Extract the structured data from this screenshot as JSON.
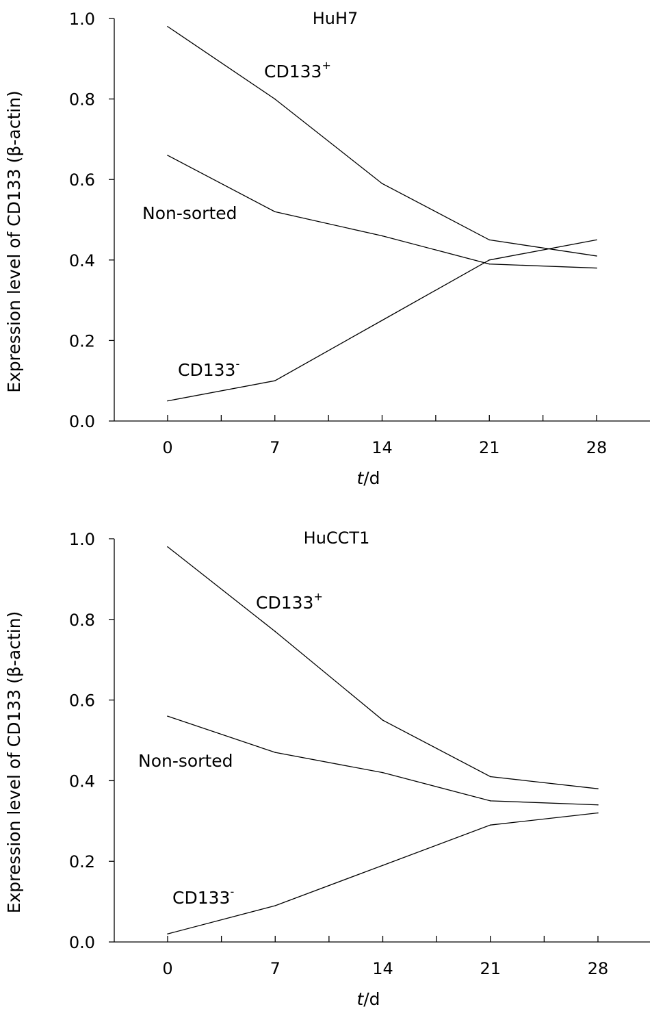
{
  "chart_data": [
    {
      "type": "line",
      "title": "HuH7",
      "xlabel_var": "t",
      "xlabel_unit": "/d",
      "ylabel": "Expression level of CD133 (β-actin)",
      "ylim": [
        0,
        1.0
      ],
      "y_ticks": [
        "0.0",
        "0.2",
        "0.4",
        "0.6",
        "0.8",
        "1.0"
      ],
      "x_ticks": [
        "0",
        "7",
        "14",
        "21",
        "28"
      ],
      "x": [
        0,
        7,
        14,
        21,
        28
      ],
      "series": [
        {
          "name": "CD133",
          "superscript": "+",
          "values": [
            0.98,
            0.8,
            0.59,
            0.45,
            0.41
          ]
        },
        {
          "name": "Non-sorted",
          "superscript": "",
          "values": [
            0.66,
            0.52,
            0.46,
            0.39,
            0.38
          ]
        },
        {
          "name": "CD133",
          "superscript": "-",
          "values": [
            0.05,
            0.1,
            0.25,
            0.4,
            0.45
          ]
        }
      ]
    },
    {
      "type": "line",
      "title": "HuCCT1",
      "xlabel_var": "t",
      "xlabel_unit": "/d",
      "ylabel": "Expression level of CD133 (β-actin)",
      "ylim": [
        0,
        1.0
      ],
      "y_ticks": [
        "0.0",
        "0.2",
        "0.4",
        "0.6",
        "0.8",
        "1.0"
      ],
      "x_ticks": [
        "0",
        "7",
        "14",
        "21",
        "28"
      ],
      "x": [
        0,
        7,
        14,
        21,
        28
      ],
      "series": [
        {
          "name": "CD133",
          "superscript": "+",
          "values": [
            0.98,
            0.77,
            0.55,
            0.41,
            0.38
          ]
        },
        {
          "name": "Non-sorted",
          "superscript": "",
          "values": [
            0.56,
            0.47,
            0.42,
            0.35,
            0.34
          ]
        },
        {
          "name": "CD133",
          "superscript": "-",
          "values": [
            0.02,
            0.09,
            0.19,
            0.29,
            0.32
          ]
        }
      ]
    }
  ]
}
